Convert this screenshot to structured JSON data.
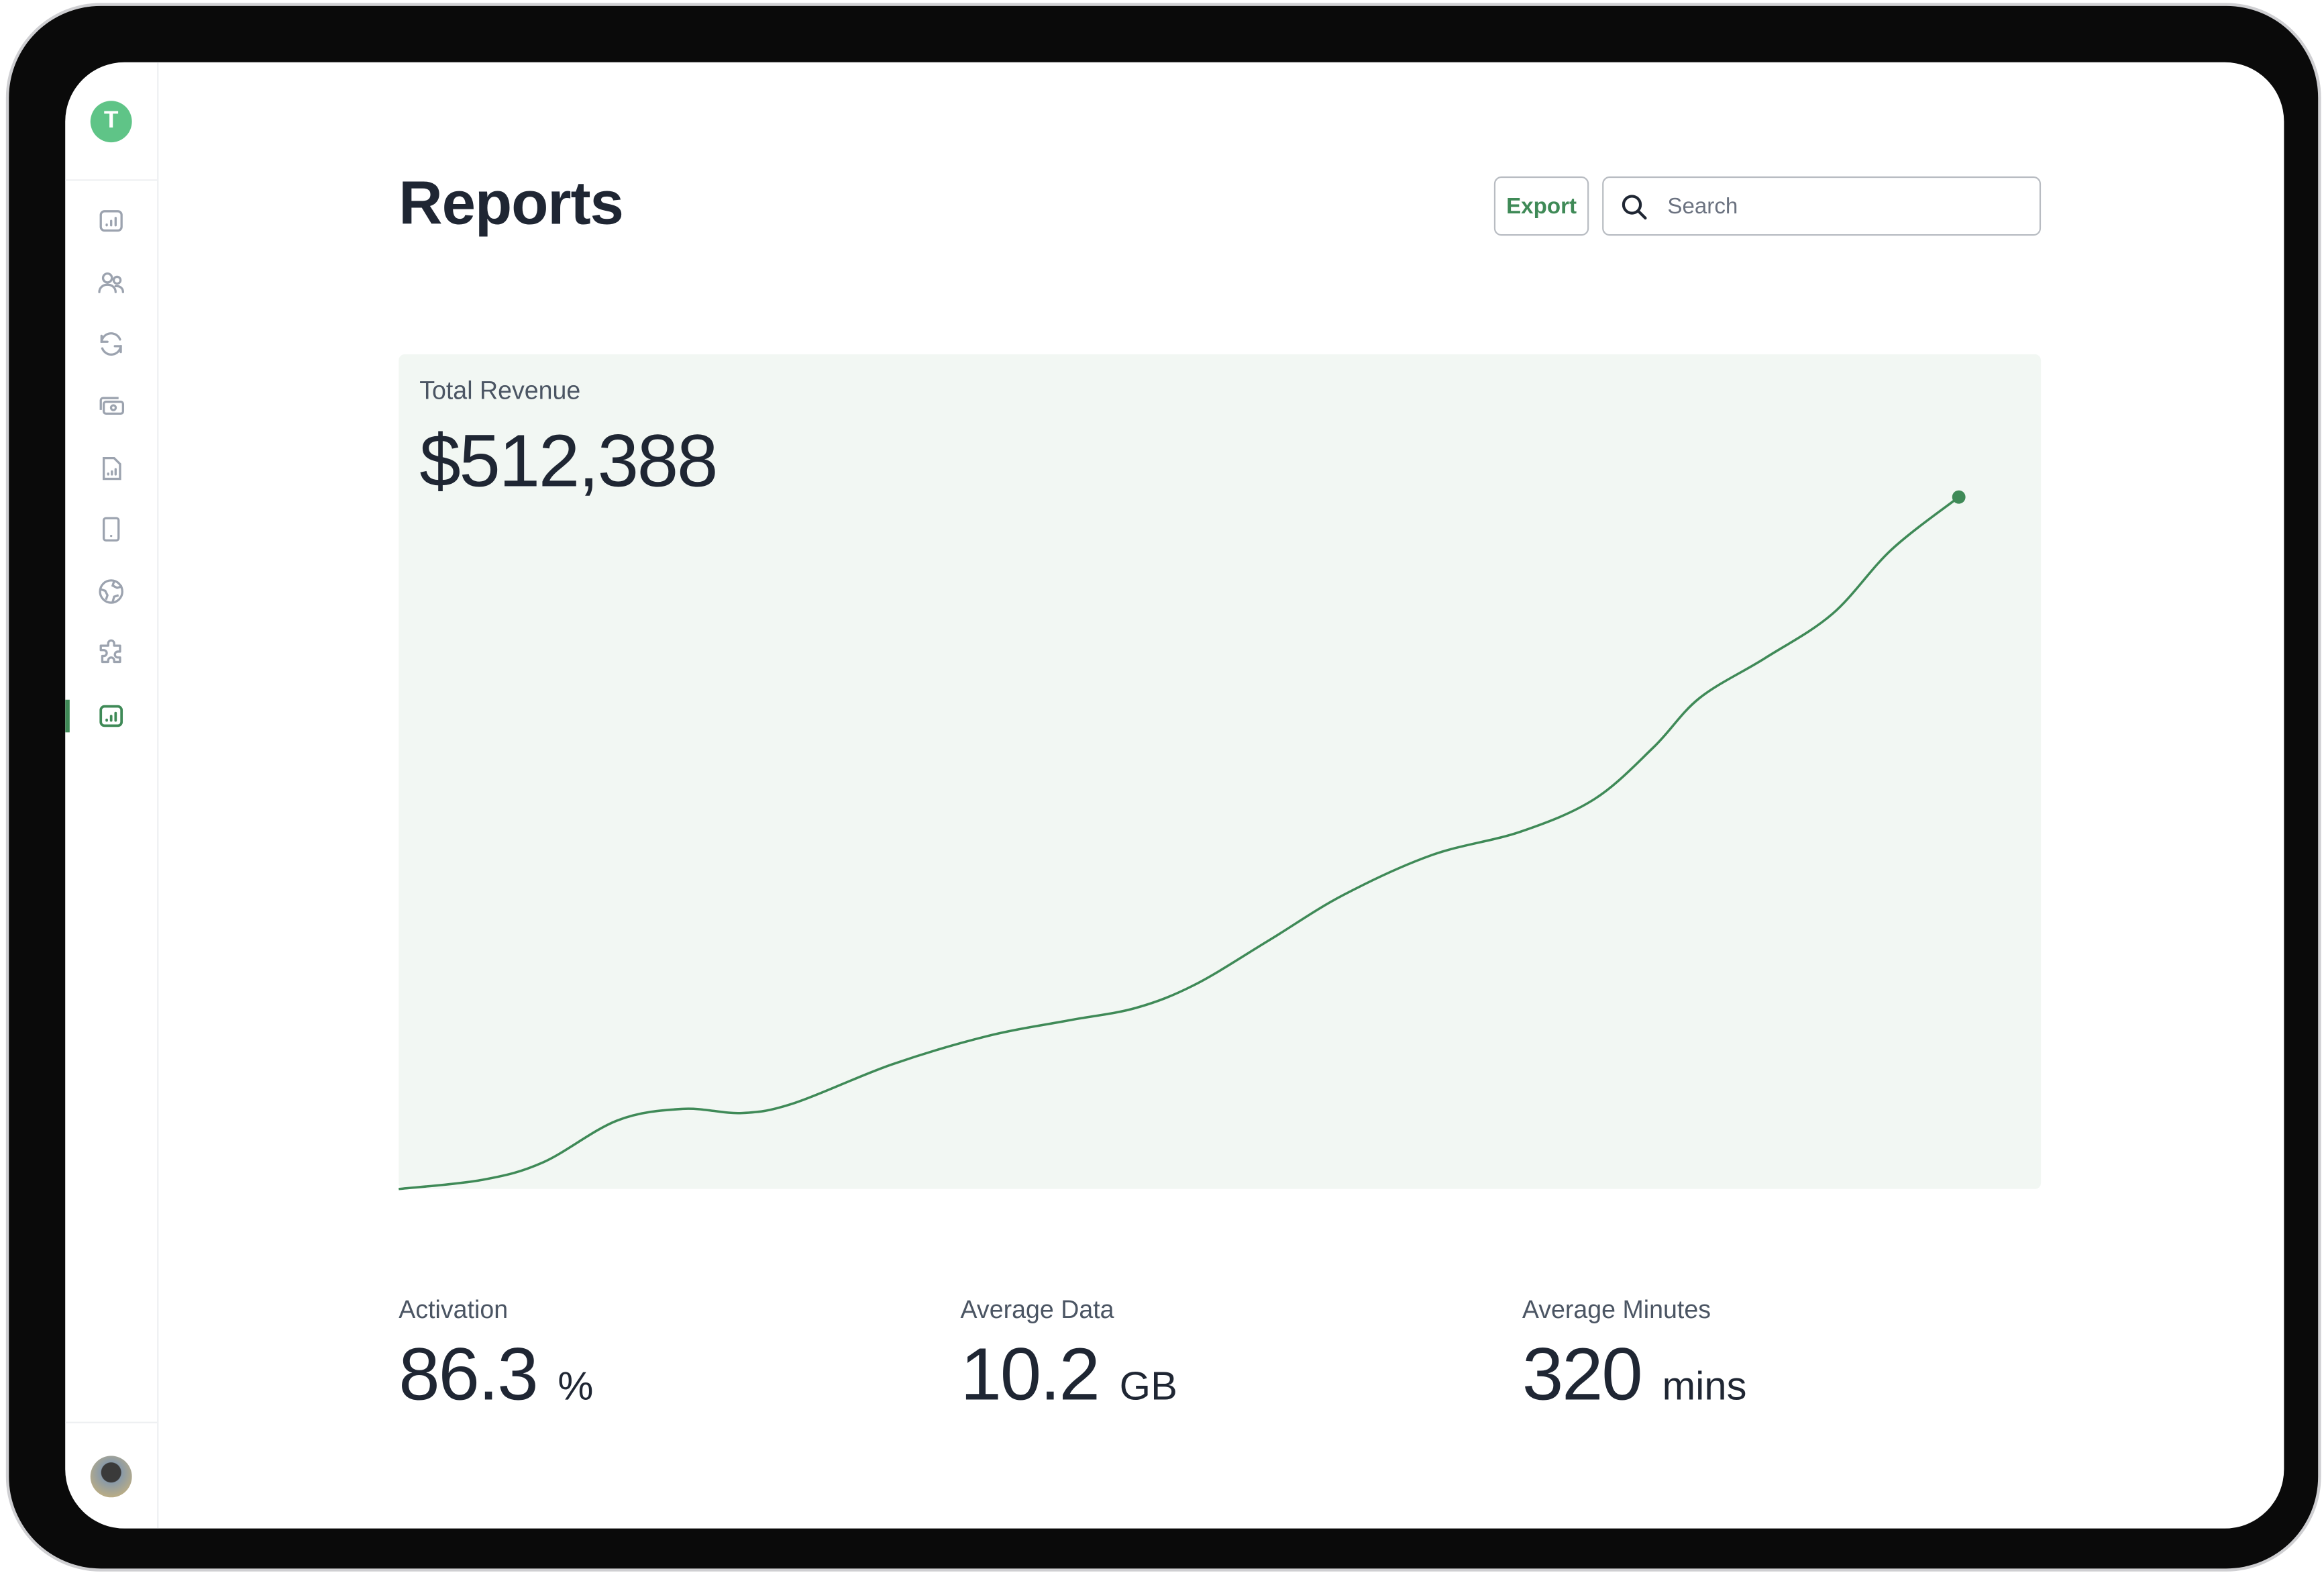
{
  "sidebar": {
    "logo_letter": "T",
    "items": [
      {
        "name": "dashboard",
        "icon": "bar-chart-square-icon"
      },
      {
        "name": "users",
        "icon": "users-icon"
      },
      {
        "name": "sync",
        "icon": "refresh-icon"
      },
      {
        "name": "billing",
        "icon": "cash-icon"
      },
      {
        "name": "documents",
        "icon": "file-chart-icon"
      },
      {
        "name": "devices",
        "icon": "tablet-icon"
      },
      {
        "name": "global",
        "icon": "globe-icon"
      },
      {
        "name": "integrations",
        "icon": "puzzle-icon"
      },
      {
        "name": "reports",
        "icon": "bar-chart-square-icon",
        "active": true
      }
    ]
  },
  "header": {
    "title": "Reports",
    "export_label": "Export",
    "search_placeholder": "Search"
  },
  "colors": {
    "accent": "#3f8a57",
    "logo": "#5fc487",
    "card_bg": "#f2f7f3",
    "text": "#1f2633"
  },
  "revenue": {
    "label": "Total Revenue",
    "value": "$512,388"
  },
  "stats": [
    {
      "label": "Activation",
      "value": "86.3",
      "unit": "%"
    },
    {
      "label": "Average Data",
      "value": "10.2",
      "unit": "GB"
    },
    {
      "label": "Average Minutes",
      "value": "320",
      "unit": "mins"
    }
  ],
  "chart_data": {
    "type": "line",
    "title": "Total Revenue",
    "xlabel": "",
    "ylabel": "",
    "xlim": [
      0,
      100
    ],
    "ylim": [
      0,
      100
    ],
    "grid": false,
    "series": [
      {
        "name": "Total Revenue",
        "x": [
          0,
          5.1,
          8.8,
          13.3,
          17.3,
          20.9,
          24.1,
          30.0,
          35.8,
          40.8,
          44.9,
          48.5,
          53.0,
          57.5,
          62.9,
          68.3,
          72.8,
          76.4,
          79.2,
          83.2,
          87.3,
          90.9,
          95.0
        ],
        "y": [
          0,
          1.1,
          3.2,
          8.2,
          9.6,
          9.1,
          10.3,
          14.9,
          18.3,
          20.2,
          21.7,
          24.5,
          29.8,
          35.2,
          40.0,
          42.8,
          46.7,
          52.9,
          58.8,
          63.6,
          68.9,
          76.6,
          82.9
        ]
      }
    ]
  }
}
